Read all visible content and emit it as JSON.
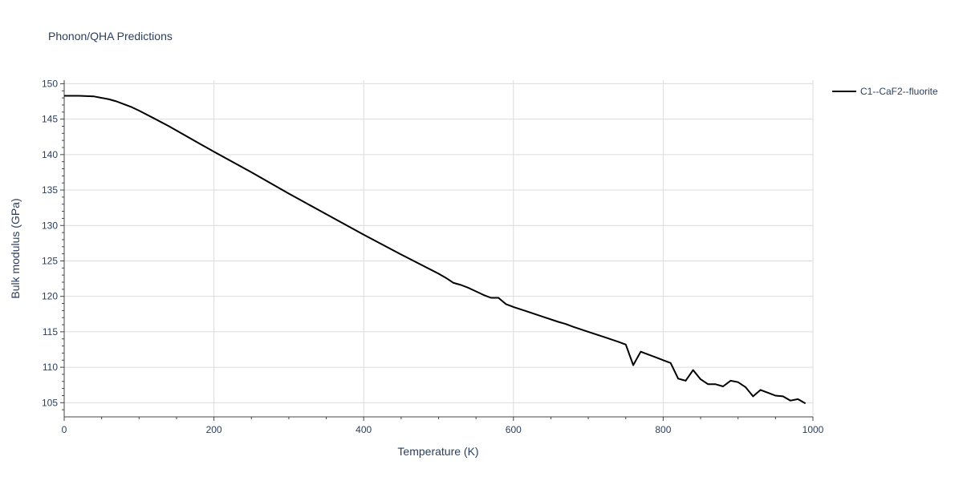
{
  "chart_data": {
    "type": "line",
    "title": "Phonon/QHA Predictions",
    "xlabel": "Temperature (K)",
    "ylabel": "Bulk modulus (GPa)",
    "xlim": [
      0,
      1000
    ],
    "ylim": [
      103,
      150.5
    ],
    "x_ticks": [
      0,
      200,
      400,
      600,
      800,
      1000
    ],
    "y_ticks": [
      105,
      110,
      115,
      120,
      125,
      130,
      135,
      140,
      145,
      150
    ],
    "x_tick_labels": [
      "0",
      "200",
      "400",
      "600",
      "800",
      "1000"
    ],
    "y_tick_labels": [
      "105",
      "110",
      "115",
      "120",
      "125",
      "130",
      "135",
      "140",
      "145",
      "150"
    ],
    "grid": true,
    "legend_position": "top-right",
    "series": [
      {
        "name": "C1--CaF2--fluorite",
        "color": "#000000",
        "x": [
          0,
          10,
          20,
          30,
          40,
          50,
          60,
          70,
          80,
          90,
          100,
          120,
          140,
          160,
          180,
          200,
          250,
          300,
          350,
          400,
          450,
          500,
          510,
          520,
          530,
          540,
          550,
          560,
          570,
          580,
          590,
          600,
          620,
          640,
          660,
          670,
          680,
          700,
          720,
          740,
          750,
          760,
          770,
          780,
          790,
          800,
          810,
          820,
          830,
          840,
          850,
          860,
          870,
          880,
          890,
          900,
          910,
          920,
          930,
          940,
          950,
          960,
          970,
          980,
          990
        ],
        "y": [
          148.3,
          148.3,
          148.3,
          148.25,
          148.2,
          148.0,
          147.8,
          147.5,
          147.1,
          146.7,
          146.2,
          145.1,
          144.0,
          142.8,
          141.6,
          140.4,
          137.5,
          134.5,
          131.6,
          128.7,
          125.9,
          123.2,
          122.6,
          121.9,
          121.6,
          121.2,
          120.7,
          120.2,
          119.8,
          119.8,
          118.9,
          118.5,
          117.8,
          117.1,
          116.4,
          116.1,
          115.7,
          115.0,
          114.3,
          113.6,
          113.2,
          110.3,
          112.2,
          111.8,
          111.4,
          111.0,
          110.6,
          108.4,
          108.1,
          109.6,
          108.3,
          107.6,
          107.6,
          107.3,
          108.1,
          107.9,
          107.2,
          105.9,
          106.8,
          106.4,
          106.0,
          105.9,
          105.3,
          105.5,
          104.9
        ]
      }
    ]
  }
}
